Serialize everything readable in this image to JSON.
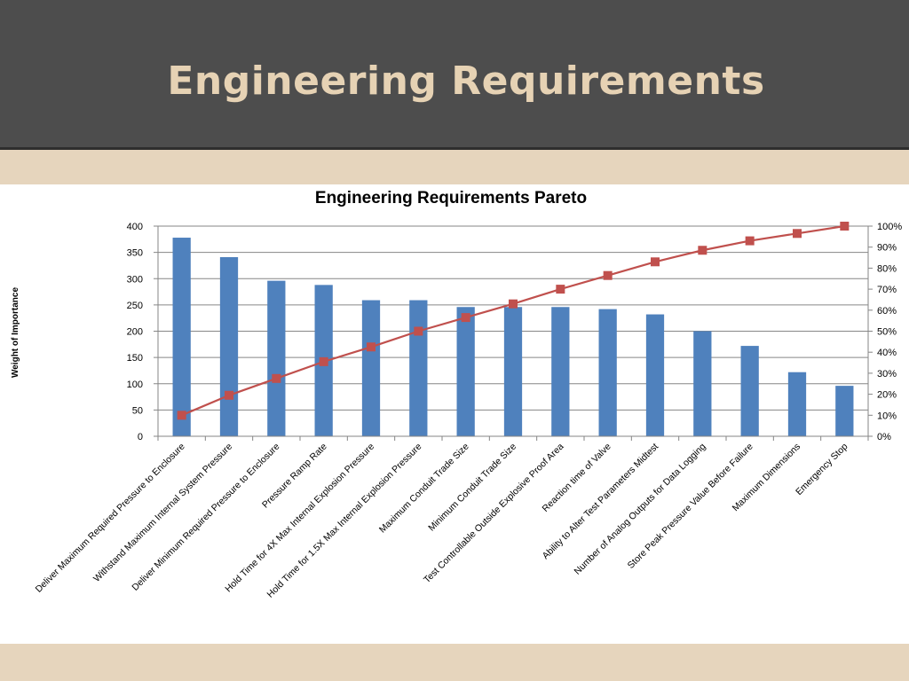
{
  "slide": {
    "title": "Engineering Requirements"
  },
  "colors": {
    "bar": "#4f81bd",
    "line": "#c0504d",
    "header": "#4d4d4d",
    "title": "#e6d2b4",
    "background": "#e6d5bd"
  },
  "chart_data": {
    "type": "bar",
    "title": "Engineering  Requirements Pareto",
    "xlabel": "",
    "ylabel": "Weight of Importance",
    "ylim": [
      0,
      400
    ],
    "y2lim": [
      0,
      100
    ],
    "yticks": [
      "0",
      "50",
      "100",
      "150",
      "200",
      "250",
      "300",
      "350",
      "400"
    ],
    "y2ticks": [
      "0%",
      "10%",
      "20%",
      "30%",
      "40%",
      "50%",
      "60%",
      "70%",
      "80%",
      "90%",
      "100%"
    ],
    "grid": true,
    "legend": "none",
    "categories": [
      "Deliver Maximum Required Pressure to Enclosure",
      "Withstand Maximum Internal System Pressure",
      "Deliver Minimum Required Pressure to Enclosure",
      "Pressure Ramp Rate",
      "Hold Time for 4X Max Internal Explosion Pressure",
      "Hold Time for 1.5X Max Internal Explosion Pressure",
      "Maximum Conduit Trade Size",
      "Minimum Conduit Trade Size",
      "Test Controllable Outside Explosive Proof Area",
      "Reaction time of Valve",
      "Ability to Alter Test Parameters Midtest",
      "Number of Analog Outputs for Data Logging",
      "Store Peak Pressure Value Before Failure",
      "Maximum Dimensions",
      "Emergency Stop"
    ],
    "series": [
      {
        "type": "bar",
        "axis": "primary",
        "values": [
          378,
          341,
          296,
          288,
          259,
          259,
          246,
          246,
          246,
          242,
          232,
          200,
          172,
          122,
          96
        ]
      },
      {
        "type": "line",
        "axis": "secondary",
        "values": [
          10,
          19.5,
          27.5,
          35.5,
          42.5,
          50,
          56.5,
          63,
          70,
          76.5,
          83,
          88.5,
          93,
          96.5,
          100
        ]
      }
    ]
  }
}
